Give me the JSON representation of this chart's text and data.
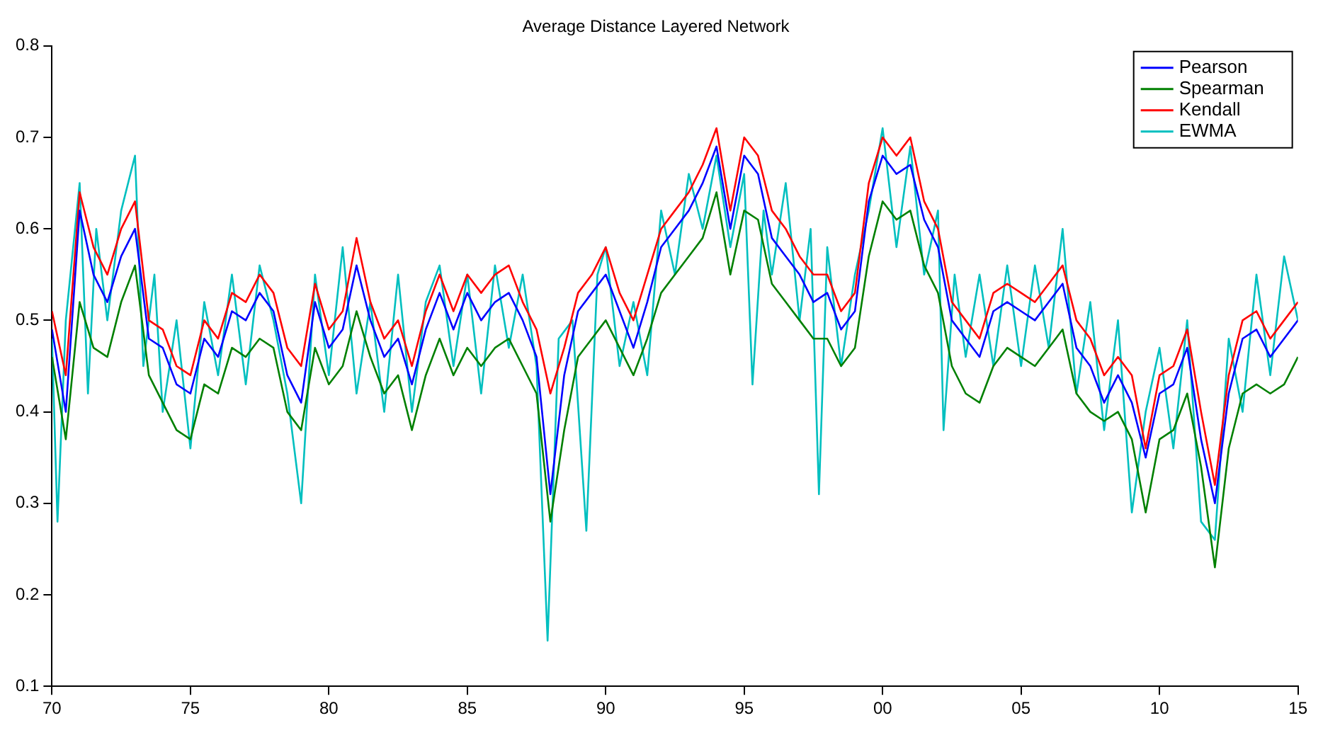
{
  "chart_data": {
    "type": "line",
    "title": "Average Distance Layered Network",
    "xlim": [
      1970,
      2015
    ],
    "ylim": [
      0.1,
      0.8
    ],
    "xticks": [
      {
        "value": 1970,
        "label": "70"
      },
      {
        "value": 1975,
        "label": "75"
      },
      {
        "value": 1980,
        "label": "80"
      },
      {
        "value": 1985,
        "label": "85"
      },
      {
        "value": 1990,
        "label": "90"
      },
      {
        "value": 1995,
        "label": "95"
      },
      {
        "value": 2000,
        "label": "00"
      },
      {
        "value": 2005,
        "label": "05"
      },
      {
        "value": 2010,
        "label": "10"
      },
      {
        "value": 2015,
        "label": "15"
      }
    ],
    "yticks": [
      0.1,
      0.2,
      0.3,
      0.4,
      0.5,
      0.6,
      0.7,
      0.8
    ],
    "grid": false,
    "legend": "top right",
    "marker": "none",
    "line_style": "solid",
    "x": [
      1970,
      1970.5,
      1971,
      1971.5,
      1972,
      1972.5,
      1973,
      1973.5,
      1974,
      1974.5,
      1975,
      1975.5,
      1976,
      1976.5,
      1977,
      1977.5,
      1978,
      1978.5,
      1979,
      1979.5,
      1980,
      1980.5,
      1981,
      1981.5,
      1982,
      1982.5,
      1983,
      1983.5,
      1984,
      1984.5,
      1985,
      1985.5,
      1986,
      1986.5,
      1987,
      1987.5,
      1988,
      1988.5,
      1989,
      1989.5,
      1990,
      1990.5,
      1991,
      1991.5,
      1992,
      1992.5,
      1993,
      1993.5,
      1994,
      1994.5,
      1995,
      1995.5,
      1996,
      1996.5,
      1997,
      1997.5,
      1998,
      1998.5,
      1999,
      1999.5,
      2000,
      2000.5,
      2001,
      2001.5,
      2002,
      2002.5,
      2003,
      2003.5,
      2004,
      2004.5,
      2005,
      2005.5,
      2006,
      2006.5,
      2007,
      2007.5,
      2008,
      2008.5,
      2009,
      2009.5,
      2010,
      2010.5,
      2011,
      2011.5,
      2012,
      2012.5,
      2013,
      2013.5,
      2014,
      2014.5,
      2015
    ],
    "series": [
      {
        "name": "Pearson",
        "color": "#0000ff",
        "values": [
          0.49,
          0.4,
          0.62,
          0.55,
          0.52,
          0.57,
          0.6,
          0.48,
          0.47,
          0.43,
          0.42,
          0.48,
          0.46,
          0.51,
          0.5,
          0.53,
          0.51,
          0.44,
          0.41,
          0.52,
          0.47,
          0.49,
          0.56,
          0.5,
          0.46,
          0.48,
          0.43,
          0.49,
          0.53,
          0.49,
          0.53,
          0.5,
          0.52,
          0.53,
          0.5,
          0.46,
          0.31,
          0.44,
          0.51,
          0.53,
          0.55,
          0.51,
          0.47,
          0.52,
          0.58,
          0.6,
          0.62,
          0.65,
          0.69,
          0.6,
          0.68,
          0.66,
          0.59,
          0.57,
          0.55,
          0.52,
          0.53,
          0.49,
          0.51,
          0.63,
          0.68,
          0.66,
          0.67,
          0.61,
          0.58,
          0.5,
          0.48,
          0.46,
          0.51,
          0.52,
          0.51,
          0.5,
          0.52,
          0.54,
          0.47,
          0.45,
          0.41,
          0.44,
          0.41,
          0.35,
          0.42,
          0.43,
          0.47,
          0.37,
          0.3,
          0.42,
          0.48,
          0.49,
          0.46,
          0.48,
          0.5
        ]
      },
      {
        "name": "Spearman",
        "color": "#008000",
        "values": [
          0.46,
          0.37,
          0.52,
          0.47,
          0.46,
          0.52,
          0.56,
          0.44,
          0.41,
          0.38,
          0.37,
          0.43,
          0.42,
          0.47,
          0.46,
          0.48,
          0.47,
          0.4,
          0.38,
          0.47,
          0.43,
          0.45,
          0.51,
          0.46,
          0.42,
          0.44,
          0.38,
          0.44,
          0.48,
          0.44,
          0.47,
          0.45,
          0.47,
          0.48,
          0.45,
          0.42,
          0.28,
          0.38,
          0.46,
          0.48,
          0.5,
          0.47,
          0.44,
          0.48,
          0.53,
          0.55,
          0.57,
          0.59,
          0.64,
          0.55,
          0.62,
          0.61,
          0.54,
          0.52,
          0.5,
          0.48,
          0.48,
          0.45,
          0.47,
          0.57,
          0.63,
          0.61,
          0.62,
          0.56,
          0.53,
          0.45,
          0.42,
          0.41,
          0.45,
          0.47,
          0.46,
          0.45,
          0.47,
          0.49,
          0.42,
          0.4,
          0.39,
          0.4,
          0.37,
          0.29,
          0.37,
          0.38,
          0.42,
          0.34,
          0.23,
          0.36,
          0.42,
          0.43,
          0.42,
          0.43,
          0.46
        ]
      },
      {
        "name": "Kendall",
        "color": "#ff0000",
        "values": [
          0.51,
          0.44,
          0.64,
          0.58,
          0.55,
          0.6,
          0.63,
          0.5,
          0.49,
          0.45,
          0.44,
          0.5,
          0.48,
          0.53,
          0.52,
          0.55,
          0.53,
          0.47,
          0.45,
          0.54,
          0.49,
          0.51,
          0.59,
          0.52,
          0.48,
          0.5,
          0.45,
          0.51,
          0.55,
          0.51,
          0.55,
          0.53,
          0.55,
          0.56,
          0.52,
          0.49,
          0.42,
          0.47,
          0.53,
          0.55,
          0.58,
          0.53,
          0.5,
          0.55,
          0.6,
          0.62,
          0.64,
          0.67,
          0.71,
          0.62,
          0.7,
          0.68,
          0.62,
          0.6,
          0.57,
          0.55,
          0.55,
          0.51,
          0.53,
          0.65,
          0.7,
          0.68,
          0.7,
          0.63,
          0.6,
          0.52,
          0.5,
          0.48,
          0.53,
          0.54,
          0.53,
          0.52,
          0.54,
          0.56,
          0.5,
          0.48,
          0.44,
          0.46,
          0.44,
          0.36,
          0.44,
          0.45,
          0.49,
          0.4,
          0.32,
          0.44,
          0.5,
          0.51,
          0.48,
          0.5,
          0.52
        ]
      },
      {
        "name": "EWMA",
        "color": "#00bfbf",
        "x": [
          1970,
          1970.2,
          1970.5,
          1971,
          1971.3,
          1971.6,
          1972,
          1972.5,
          1973,
          1973.3,
          1973.7,
          1974,
          1974.5,
          1975,
          1975.5,
          1976,
          1976.5,
          1977,
          1977.5,
          1978,
          1978.5,
          1979,
          1979.5,
          1980,
          1980.5,
          1981,
          1981.5,
          1982,
          1982.5,
          1983,
          1983.5,
          1984,
          1984.5,
          1985,
          1985.5,
          1986,
          1986.5,
          1987,
          1987.5,
          1987.9,
          1988.3,
          1988.8,
          1989.3,
          1989.7,
          1990,
          1990.5,
          1991,
          1991.5,
          1992,
          1992.5,
          1993,
          1993.5,
          1994,
          1994.5,
          1995,
          1995.3,
          1995.7,
          1996,
          1996.5,
          1997,
          1997.4,
          1997.7,
          1998,
          1998.5,
          1999,
          1999.5,
          2000,
          2000.5,
          2001,
          2001.5,
          2002,
          2002.2,
          2002.6,
          2003,
          2003.5,
          2004,
          2004.5,
          2005,
          2005.5,
          2006,
          2006.5,
          2007,
          2007.5,
          2008,
          2008.5,
          2009,
          2009.5,
          2010,
          2010.5,
          2011,
          2011.5,
          2012,
          2012.5,
          2013,
          2013.5,
          2014,
          2014.5,
          2015
        ],
        "values": [
          0.48,
          0.28,
          0.5,
          0.65,
          0.42,
          0.6,
          0.5,
          0.62,
          0.68,
          0.45,
          0.55,
          0.4,
          0.5,
          0.36,
          0.52,
          0.44,
          0.55,
          0.43,
          0.56,
          0.5,
          0.42,
          0.3,
          0.55,
          0.44,
          0.58,
          0.42,
          0.52,
          0.4,
          0.55,
          0.4,
          0.52,
          0.56,
          0.45,
          0.55,
          0.42,
          0.56,
          0.47,
          0.55,
          0.45,
          0.15,
          0.48,
          0.5,
          0.27,
          0.55,
          0.58,
          0.45,
          0.52,
          0.44,
          0.62,
          0.55,
          0.66,
          0.6,
          0.68,
          0.58,
          0.66,
          0.43,
          0.62,
          0.55,
          0.65,
          0.5,
          0.6,
          0.31,
          0.58,
          0.45,
          0.55,
          0.62,
          0.71,
          0.58,
          0.69,
          0.55,
          0.62,
          0.38,
          0.55,
          0.46,
          0.55,
          0.45,
          0.56,
          0.45,
          0.56,
          0.47,
          0.6,
          0.42,
          0.52,
          0.38,
          0.5,
          0.29,
          0.4,
          0.47,
          0.36,
          0.5,
          0.28,
          0.26,
          0.48,
          0.4,
          0.55,
          0.44,
          0.57,
          0.5
        ]
      }
    ]
  }
}
